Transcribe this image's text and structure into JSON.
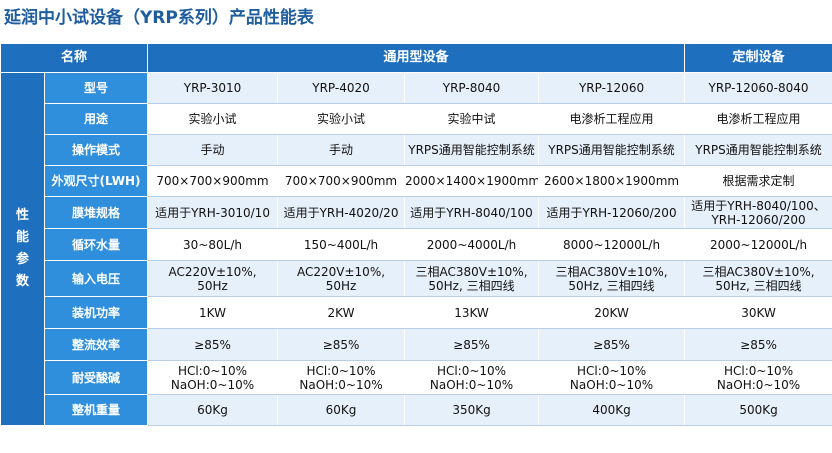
{
  "title": "延润中小试设备（YRP系列）产品性能表",
  "header": {
    "name_label": "名称",
    "general_label": "通用型设备",
    "custom_label": "定制设备"
  },
  "group_label": "性能参数",
  "rows": [
    {
      "label": "型号",
      "values": [
        [
          "YRP-3010"
        ],
        [
          "YRP-4020"
        ],
        [
          "YRP-8040"
        ],
        [
          "YRP-12060"
        ],
        [
          "YRP-12060-8040"
        ]
      ]
    },
    {
      "label": "用途",
      "values": [
        [
          "实验小试"
        ],
        [
          "实验小试"
        ],
        [
          "实验中试"
        ],
        [
          "电渗析工程应用"
        ],
        [
          "电渗析工程应用"
        ]
      ]
    },
    {
      "label": "操作模式",
      "values": [
        [
          "手动"
        ],
        [
          "手动"
        ],
        [
          "YRPS通用智能控制系统"
        ],
        [
          "YRPS通用智能控制系统"
        ],
        [
          "YRPS通用智能控制系统"
        ]
      ]
    },
    {
      "label": "外观尺寸(LWH)",
      "values": [
        [
          "700×700×900mm"
        ],
        [
          "700×700×900mm"
        ],
        [
          "2000×1400×1900mm"
        ],
        [
          "2600×1800×1900mm"
        ],
        [
          "根据需求定制"
        ]
      ]
    },
    {
      "label": "膜堆规格",
      "values": [
        [
          "适用于YRH-3010/10"
        ],
        [
          "适用于YRH-4020/20"
        ],
        [
          "适用于YRH-8040/100"
        ],
        [
          "适用于YRH-12060/200"
        ],
        [
          "适用于YRH-8040/100、",
          "YRH-12060/200"
        ]
      ]
    },
    {
      "label": "循环水量",
      "values": [
        [
          "30~80L/h"
        ],
        [
          "150~400L/h"
        ],
        [
          "2000~4000L/h"
        ],
        [
          "8000~12000L/h"
        ],
        [
          "2000~12000L/h"
        ]
      ]
    },
    {
      "label": "输入电压",
      "values": [
        [
          "AC220V±10%,",
          "50Hz"
        ],
        [
          "AC220V±10%,",
          "50Hz"
        ],
        [
          "三相AC380V±10%,",
          "50Hz, 三相四线"
        ],
        [
          "三相AC380V±10%,",
          "50Hz, 三相四线"
        ],
        [
          "三相AC380V±10%,",
          "50Hz, 三相四线"
        ]
      ]
    },
    {
      "label": "装机功率",
      "values": [
        [
          "1KW"
        ],
        [
          "2KW"
        ],
        [
          "13KW"
        ],
        [
          "20KW"
        ],
        [
          "30KW"
        ]
      ]
    },
    {
      "label": "整流效率",
      "values": [
        [
          "≥85%"
        ],
        [
          "≥85%"
        ],
        [
          "≥85%"
        ],
        [
          "≥85%"
        ],
        [
          "≥85%"
        ]
      ]
    },
    {
      "label": "耐受酸碱",
      "values": [
        [
          "HCl:0~10%",
          "NaOH:0~10%"
        ],
        [
          "HCl:0~10%",
          "NaOH:0~10%"
        ],
        [
          "HCl:0~10%",
          "NaOH:0~10%"
        ],
        [
          "HCl:0~10%",
          "NaOH:0~10%"
        ],
        [
          "HCl:0~10%",
          "NaOH:0~10%"
        ]
      ]
    },
    {
      "label": "整机重量",
      "values": [
        [
          "60Kg"
        ],
        [
          "60Kg"
        ],
        [
          "350Kg"
        ],
        [
          "400Kg"
        ],
        [
          "500Kg"
        ]
      ]
    }
  ],
  "colors": {
    "title": "#1f5d9e",
    "header_dark": "#1f6fbf",
    "label_bg": "#2f8fdc",
    "cell_alt_bg": "#e6f0fa"
  }
}
